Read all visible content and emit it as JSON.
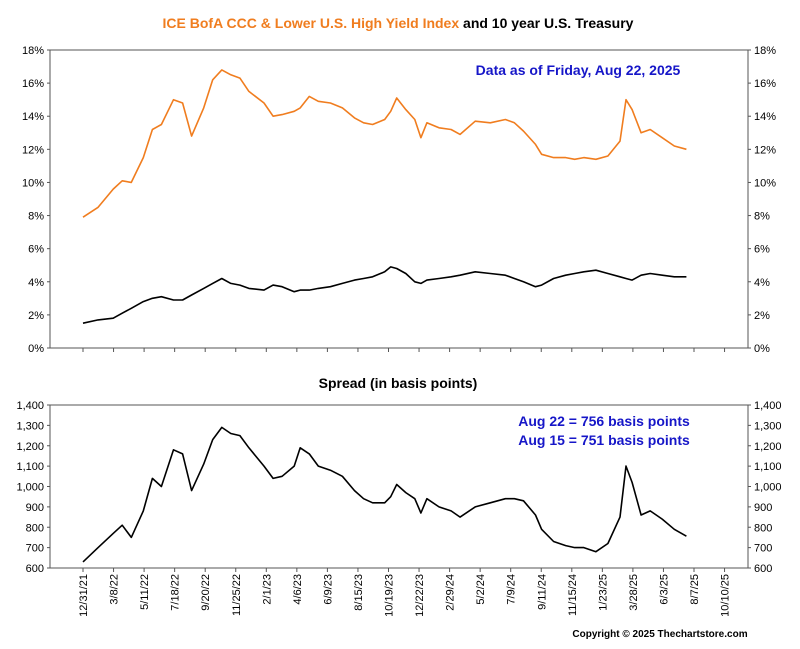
{
  "colors": {
    "ccc": "#f07d1f",
    "treasury": "#000000",
    "spread": "#000000",
    "note": "#1616c8",
    "plot_bg": "#ffffff",
    "grid": "#d9d9d9"
  },
  "title": {
    "part1": "ICE BofA CCC & Lower U.S. High Yield Index",
    "part2": " and 10 year U.S. Treasury"
  },
  "copyright": "Copyright © 2025 Thechartstore.com",
  "chart_data": [
    {
      "type": "line",
      "title": "ICE BofA CCC & Lower U.S. High Yield Index and 10 year U.S. Treasury",
      "annotation": "Data as of Friday, Aug 22, 2025",
      "y_ticks": [
        "0%",
        "2%",
        "4%",
        "6%",
        "8%",
        "10%",
        "12%",
        "14%",
        "16%",
        "18%"
      ],
      "ylim": [
        0,
        18
      ],
      "x_ticks": [
        "12/31/21",
        "3/8/22",
        "5/11/22",
        "7/18/22",
        "9/20/22",
        "11/25/22",
        "2/1/23",
        "4/6/23",
        "6/9/23",
        "8/15/23",
        "10/19/23",
        "12/22/23",
        "2/29/24",
        "5/2/24",
        "7/9/24",
        "9/11/24",
        "11/15/24",
        "1/23/25",
        "3/28/25",
        "6/3/25",
        "8/7/25",
        "10/10/25"
      ],
      "grid": true,
      "series": [
        {
          "name": "ICE BofA CCC & Lower U.S. High Yield Index",
          "points": [
            [
              0,
              7.9
            ],
            [
              0.5,
              8.5
            ],
            [
              1,
              9.6
            ],
            [
              1.3,
              10.1
            ],
            [
              1.6,
              10.0
            ],
            [
              2,
              11.5
            ],
            [
              2.3,
              13.2
            ],
            [
              2.6,
              13.5
            ],
            [
              3,
              15.0
            ],
            [
              3.3,
              14.8
            ],
            [
              3.6,
              12.8
            ],
            [
              4,
              14.5
            ],
            [
              4.3,
              16.2
            ],
            [
              4.6,
              16.8
            ],
            [
              4.9,
              16.5
            ],
            [
              5.2,
              16.3
            ],
            [
              5.5,
              15.5
            ],
            [
              6,
              14.8
            ],
            [
              6.3,
              14.0
            ],
            [
              6.6,
              14.1
            ],
            [
              7,
              14.3
            ],
            [
              7.2,
              14.5
            ],
            [
              7.5,
              15.2
            ],
            [
              7.8,
              14.9
            ],
            [
              8.2,
              14.8
            ],
            [
              8.6,
              14.5
            ],
            [
              9,
              13.9
            ],
            [
              9.3,
              13.6
            ],
            [
              9.6,
              13.5
            ],
            [
              10,
              13.8
            ],
            [
              10.2,
              14.3
            ],
            [
              10.4,
              15.1
            ],
            [
              10.7,
              14.4
            ],
            [
              11,
              13.8
            ],
            [
              11.2,
              12.7
            ],
            [
              11.4,
              13.6
            ],
            [
              11.8,
              13.3
            ],
            [
              12.2,
              13.2
            ],
            [
              12.5,
              12.9
            ],
            [
              13,
              13.7
            ],
            [
              13.5,
              13.6
            ],
            [
              14,
              13.8
            ],
            [
              14.3,
              13.6
            ],
            [
              14.6,
              13.1
            ],
            [
              15,
              12.3
            ],
            [
              15.2,
              11.7
            ],
            [
              15.6,
              11.5
            ],
            [
              16,
              11.5
            ],
            [
              16.3,
              11.4
            ],
            [
              16.6,
              11.5
            ],
            [
              17,
              11.4
            ],
            [
              17.4,
              11.6
            ],
            [
              17.8,
              12.5
            ],
            [
              18.0,
              15.0
            ],
            [
              18.2,
              14.4
            ],
            [
              18.5,
              13.0
            ],
            [
              18.8,
              13.2
            ],
            [
              19.2,
              12.7
            ],
            [
              19.6,
              12.2
            ],
            [
              20,
              12.0
            ]
          ]
        },
        {
          "name": "10 year U.S. Treasury",
          "points": [
            [
              0,
              1.5
            ],
            [
              0.5,
              1.7
            ],
            [
              1,
              1.8
            ],
            [
              1.3,
              2.1
            ],
            [
              1.6,
              2.4
            ],
            [
              2,
              2.8
            ],
            [
              2.3,
              3.0
            ],
            [
              2.6,
              3.1
            ],
            [
              3,
              2.9
            ],
            [
              3.3,
              2.9
            ],
            [
              3.6,
              3.2
            ],
            [
              4,
              3.6
            ],
            [
              4.3,
              3.9
            ],
            [
              4.6,
              4.2
            ],
            [
              4.9,
              3.9
            ],
            [
              5.2,
              3.8
            ],
            [
              5.5,
              3.6
            ],
            [
              6,
              3.5
            ],
            [
              6.3,
              3.8
            ],
            [
              6.6,
              3.7
            ],
            [
              7,
              3.4
            ],
            [
              7.2,
              3.5
            ],
            [
              7.5,
              3.5
            ],
            [
              7.8,
              3.6
            ],
            [
              8.2,
              3.7
            ],
            [
              8.6,
              3.9
            ],
            [
              9,
              4.1
            ],
            [
              9.3,
              4.2
            ],
            [
              9.6,
              4.3
            ],
            [
              10,
              4.6
            ],
            [
              10.2,
              4.9
            ],
            [
              10.4,
              4.8
            ],
            [
              10.7,
              4.5
            ],
            [
              11,
              4.0
            ],
            [
              11.2,
              3.9
            ],
            [
              11.4,
              4.1
            ],
            [
              11.8,
              4.2
            ],
            [
              12.2,
              4.3
            ],
            [
              12.5,
              4.4
            ],
            [
              13,
              4.6
            ],
            [
              13.5,
              4.5
            ],
            [
              14,
              4.4
            ],
            [
              14.3,
              4.2
            ],
            [
              14.6,
              4.0
            ],
            [
              15,
              3.7
            ],
            [
              15.2,
              3.8
            ],
            [
              15.6,
              4.2
            ],
            [
              16,
              4.4
            ],
            [
              16.3,
              4.5
            ],
            [
              16.6,
              4.6
            ],
            [
              17,
              4.7
            ],
            [
              17.4,
              4.5
            ],
            [
              17.8,
              4.3
            ],
            [
              18.0,
              4.2
            ],
            [
              18.2,
              4.1
            ],
            [
              18.5,
              4.4
            ],
            [
              18.8,
              4.5
            ],
            [
              19.2,
              4.4
            ],
            [
              19.6,
              4.3
            ],
            [
              20,
              4.3
            ]
          ]
        }
      ]
    },
    {
      "type": "line",
      "title": "Spread (in basis points)",
      "annotations": [
        "Aug 22 = 756 basis points",
        "Aug 15 = 751 basis points"
      ],
      "y_ticks": [
        "600",
        "700",
        "800",
        "900",
        "1,000",
        "1,100",
        "1,200",
        "1,300",
        "1,400"
      ],
      "ylim": [
        600,
        1400
      ],
      "x_ticks": [
        "12/31/21",
        "3/8/22",
        "5/11/22",
        "7/18/22",
        "9/20/22",
        "11/25/22",
        "2/1/23",
        "4/6/23",
        "6/9/23",
        "8/15/23",
        "10/19/23",
        "12/22/23",
        "2/29/24",
        "5/2/24",
        "7/9/24",
        "9/11/24",
        "11/15/24",
        "1/23/25",
        "3/28/25",
        "6/3/25",
        "8/7/25",
        "10/10/25"
      ],
      "grid": true,
      "series": [
        {
          "name": "Spread",
          "points": [
            [
              0,
              630
            ],
            [
              0.5,
              700
            ],
            [
              1,
              770
            ],
            [
              1.3,
              810
            ],
            [
              1.6,
              750
            ],
            [
              2,
              880
            ],
            [
              2.3,
              1040
            ],
            [
              2.6,
              1000
            ],
            [
              3,
              1180
            ],
            [
              3.3,
              1160
            ],
            [
              3.6,
              980
            ],
            [
              4,
              1110
            ],
            [
              4.3,
              1230
            ],
            [
              4.6,
              1290
            ],
            [
              4.9,
              1260
            ],
            [
              5.2,
              1250
            ],
            [
              5.5,
              1190
            ],
            [
              6,
              1100
            ],
            [
              6.3,
              1040
            ],
            [
              6.6,
              1050
            ],
            [
              7,
              1100
            ],
            [
              7.2,
              1190
            ],
            [
              7.5,
              1160
            ],
            [
              7.8,
              1100
            ],
            [
              8.2,
              1080
            ],
            [
              8.6,
              1050
            ],
            [
              9,
              980
            ],
            [
              9.3,
              940
            ],
            [
              9.6,
              920
            ],
            [
              10,
              920
            ],
            [
              10.2,
              950
            ],
            [
              10.4,
              1010
            ],
            [
              10.7,
              970
            ],
            [
              11,
              940
            ],
            [
              11.2,
              870
            ],
            [
              11.4,
              940
            ],
            [
              11.8,
              900
            ],
            [
              12.2,
              880
            ],
            [
              12.5,
              850
            ],
            [
              13,
              900
            ],
            [
              13.5,
              920
            ],
            [
              14,
              940
            ],
            [
              14.3,
              940
            ],
            [
              14.6,
              930
            ],
            [
              15,
              860
            ],
            [
              15.2,
              790
            ],
            [
              15.6,
              730
            ],
            [
              16,
              710
            ],
            [
              16.3,
              700
            ],
            [
              16.6,
              700
            ],
            [
              17,
              680
            ],
            [
              17.4,
              720
            ],
            [
              17.8,
              850
            ],
            [
              18.0,
              1100
            ],
            [
              18.2,
              1020
            ],
            [
              18.5,
              860
            ],
            [
              18.8,
              880
            ],
            [
              19.2,
              840
            ],
            [
              19.6,
              790
            ],
            [
              20,
              756
            ]
          ]
        }
      ]
    }
  ]
}
